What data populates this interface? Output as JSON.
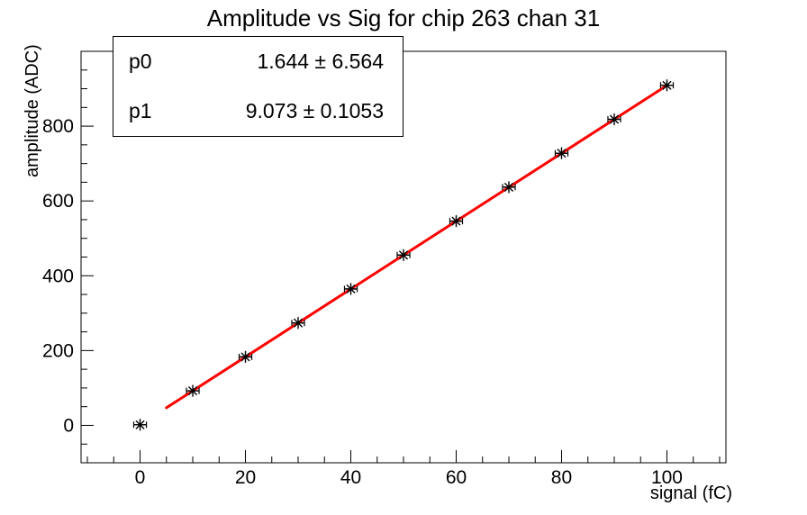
{
  "title": "Amplitude vs Sig for chip 263 chan 31",
  "stats_box": {
    "rows": [
      {
        "name": "p0",
        "value": "1.644 ± 6.564"
      },
      {
        "name": "p1",
        "value": "9.073 ± 0.1053"
      }
    ]
  },
  "chart_data": {
    "type": "scatter",
    "title": "Amplitude vs Sig for chip 263 chan 31",
    "xlabel": "signal (fC)",
    "ylabel": "amplitude (ADC)",
    "xlim": [
      -11.2,
      111.2
    ],
    "ylim": [
      -100,
      1000
    ],
    "x_major_ticks": [
      0,
      20,
      40,
      60,
      80,
      100
    ],
    "x_minor_step": 5,
    "y_major_ticks": [
      0,
      200,
      400,
      600,
      800
    ],
    "y_minor_step": 50,
    "grid": false,
    "legend": false,
    "marker": "asterisk-star",
    "marker_color": "#000000",
    "x": [
      0,
      10,
      20,
      30,
      40,
      50,
      60,
      70,
      80,
      90,
      100
    ],
    "y": [
      1.6,
      92.4,
      183.1,
      273.8,
      364.6,
      455.3,
      546.0,
      636.8,
      727.5,
      818.2,
      909.0
    ],
    "x_err": 1.2,
    "fit": {
      "model": "p0 + p1*x",
      "p0": 1.644,
      "p0_err": 6.564,
      "p1": 9.073,
      "p1_err": 0.1053,
      "x_range": [
        5,
        100
      ],
      "color": "#ff0000",
      "width": 3
    }
  }
}
